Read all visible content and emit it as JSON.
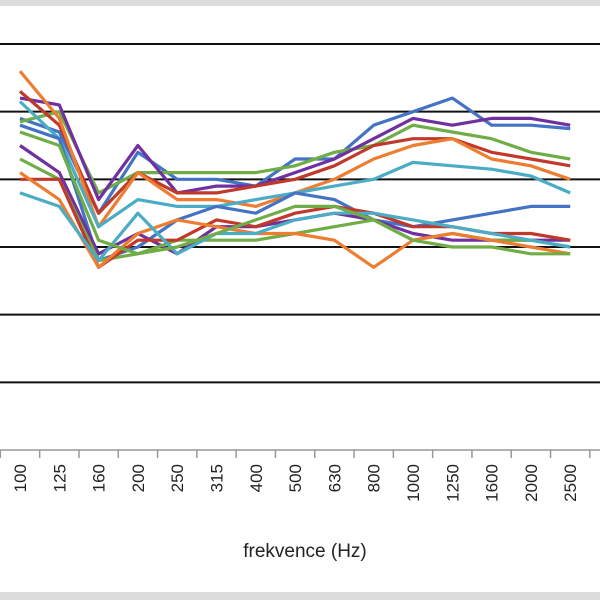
{
  "chart_data": {
    "type": "line",
    "xlabel": "frekvence (Hz)",
    "ylabel": "",
    "title": "",
    "categories": [
      "100",
      "125",
      "160",
      "200",
      "250",
      "315",
      "400",
      "500",
      "630",
      "800",
      "1000",
      "1250",
      "1600",
      "2000",
      "2500"
    ],
    "ylim": [
      -60,
      0
    ],
    "grid": true,
    "legend": "none",
    "series": [
      {
        "color": "#4472c4",
        "values": [
          -11,
          -13,
          -25,
          -16,
          -20,
          -20,
          -21,
          -17,
          -17,
          -12,
          -10,
          -8,
          -12,
          -12,
          -12.5
        ]
      },
      {
        "color": "#70ad47",
        "values": [
          -11.5,
          -10,
          -22,
          -19,
          -19,
          -19,
          -19,
          -18,
          -16,
          -15,
          -12,
          -13,
          -14,
          -16,
          -17
        ]
      },
      {
        "color": "#7030a0",
        "values": [
          -8,
          -9,
          -23,
          -15,
          -22,
          -21,
          -21,
          -19,
          -17,
          -14,
          -11,
          -12,
          -11,
          -11,
          -12
        ]
      },
      {
        "color": "#c0392b",
        "values": [
          -7,
          -12,
          -25,
          -19,
          -22,
          -22,
          -21,
          -20,
          -18,
          -15,
          -14,
          -14,
          -16,
          -17,
          -18
        ]
      },
      {
        "color": "#ed7d31",
        "values": [
          -4,
          -11,
          -27,
          -19,
          -23,
          -23,
          -24,
          -22,
          -20,
          -17,
          -15,
          -14,
          -17,
          -18,
          -20
        ]
      },
      {
        "color": "#4bacc6",
        "values": [
          -8.5,
          -14,
          -27,
          -23,
          -24,
          -24,
          -23,
          -22,
          -21,
          -20,
          -17.5,
          -18,
          -18.5,
          -19.5,
          -22
        ]
      },
      {
        "color": "#4472c4",
        "values": [
          -12,
          -14,
          -32,
          -30,
          -26,
          -24,
          -25,
          -22,
          -23,
          -26,
          -27,
          -26,
          -25,
          -24,
          -24
        ]
      },
      {
        "color": "#7030a0",
        "values": [
          -15,
          -19,
          -31,
          -28,
          -31,
          -27,
          -27,
          -26,
          -25,
          -26,
          -28,
          -29,
          -29,
          -29,
          -29
        ]
      },
      {
        "color": "#70ad47",
        "values": [
          -17,
          -20,
          -32,
          -31,
          -29,
          -29,
          -29,
          -28,
          -27,
          -26,
          -29,
          -28,
          -29,
          -29,
          -30
        ]
      },
      {
        "color": "#c0392b",
        "values": [
          -20,
          -20,
          -33,
          -29,
          -29,
          -26,
          -27,
          -25,
          -24,
          -25,
          -27,
          -27,
          -28,
          -28,
          -29
        ]
      },
      {
        "color": "#ed7d31",
        "values": [
          -19,
          -23,
          -33,
          -28,
          -26,
          -27,
          -28,
          -28,
          -29,
          -33,
          -29,
          -28,
          -29,
          -30,
          -31
        ]
      },
      {
        "color": "#4bacc6",
        "values": [
          -22,
          -24,
          -32,
          -25,
          -31,
          -28,
          -28,
          -26,
          -25,
          -25,
          -26,
          -27,
          -28,
          -29,
          -30
        ]
      },
      {
        "color": "#70ad47",
        "values": [
          -13,
          -15,
          -29,
          -31,
          -30,
          -28,
          -26,
          -24,
          -24,
          -26,
          -29,
          -30,
          -30,
          -31,
          -31
        ]
      }
    ]
  }
}
